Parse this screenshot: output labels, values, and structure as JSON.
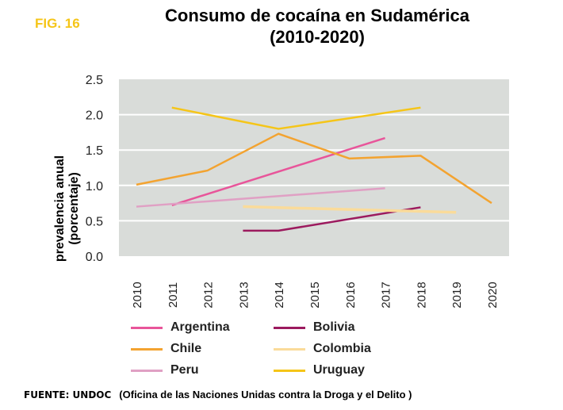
{
  "fig_label": "FIG. 16",
  "source": {
    "label": "FUENTE: UNDOC",
    "text": "(Oficina de las Naciones Unidas contra la Droga y el Delito )"
  },
  "chart_data": {
    "type": "line",
    "title": "Consumo de cocaína en Sudamérica",
    "subtitle": "(2010-2020)",
    "ylabel": "prevalencia anual (porcentaje)",
    "xlabel": "",
    "x_ticks": [
      "2010",
      "2011",
      "2012",
      "2013",
      "2014",
      "2015",
      "2016",
      "2017",
      "2018",
      "2019",
      "2020"
    ],
    "y_ticks": [
      "0.0",
      "0.5",
      "1.0",
      "1.5",
      "2.0",
      "2.5"
    ],
    "ylim": [
      0,
      2.5
    ],
    "xlim": [
      2010,
      2020
    ],
    "grid": true,
    "background": "#d9dcd9",
    "legend_position": "bottom",
    "series": [
      {
        "name": "Argentina",
        "color": "#e8559a",
        "points": [
          [
            2011,
            0.72
          ],
          [
            2017,
            1.67
          ]
        ]
      },
      {
        "name": "Bolivia",
        "color": "#9c1a5e",
        "points": [
          [
            2013,
            0.36
          ],
          [
            2014,
            0.36
          ],
          [
            2018,
            0.69
          ]
        ]
      },
      {
        "name": "Chile",
        "color": "#f3a330",
        "points": [
          [
            2010,
            1.01
          ],
          [
            2012,
            1.21
          ],
          [
            2014,
            1.73
          ],
          [
            2016,
            1.38
          ],
          [
            2018,
            1.42
          ],
          [
            2020,
            0.75
          ]
        ]
      },
      {
        "name": "Colombia",
        "color": "#fadb9a",
        "points": [
          [
            2013,
            0.7
          ],
          [
            2019,
            0.62
          ]
        ]
      },
      {
        "name": "Peru",
        "color": "#e0a0c4",
        "points": [
          [
            2010,
            0.7
          ],
          [
            2017,
            0.96
          ]
        ]
      },
      {
        "name": "Uruguay",
        "color": "#f5c518",
        "points": [
          [
            2011,
            2.1
          ],
          [
            2014,
            1.8
          ],
          [
            2018,
            2.1
          ]
        ]
      }
    ]
  }
}
